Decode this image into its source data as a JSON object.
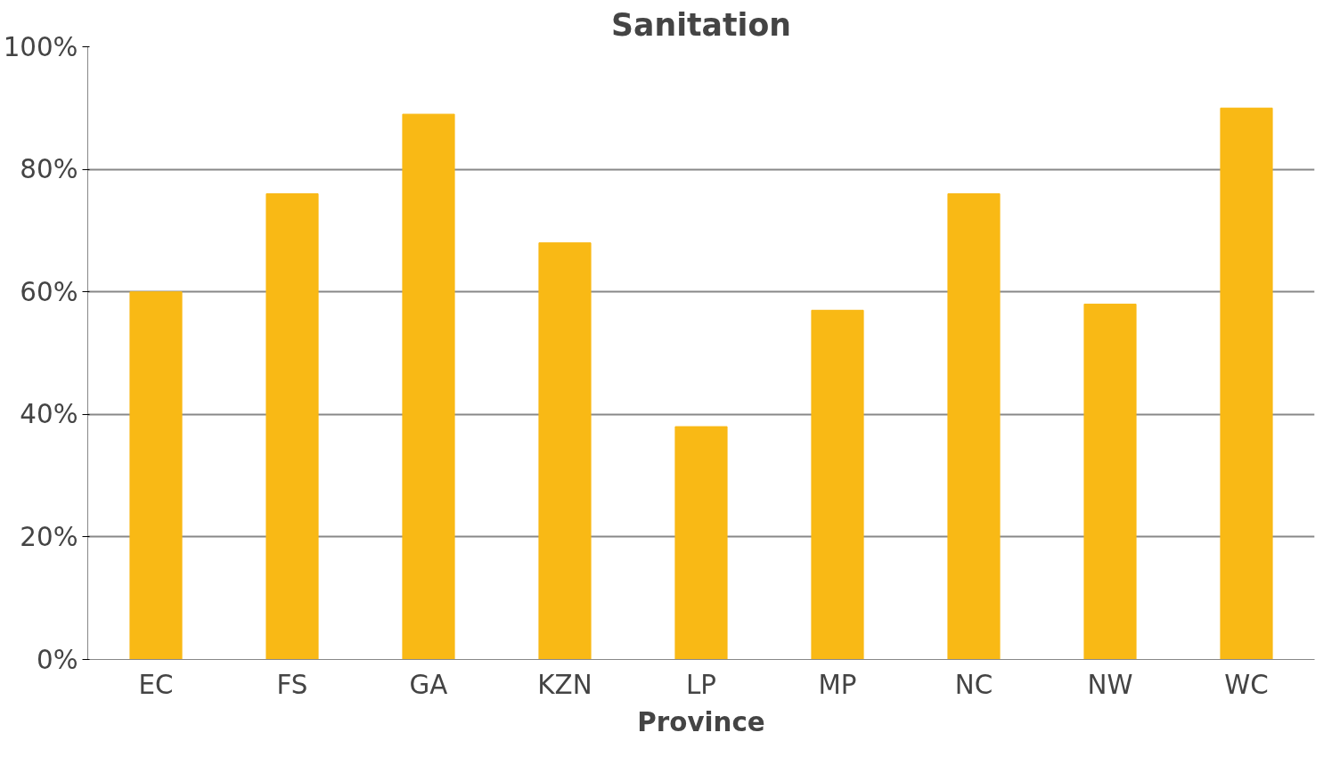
{
  "chart_data": {
    "type": "bar",
    "title": "Sanitation",
    "xlabel": "Province",
    "categories": [
      "EC",
      "FS",
      "GA",
      "KZN",
      "LP",
      "MP",
      "NC",
      "NW",
      "WC"
    ],
    "values": [
      60,
      76,
      89,
      68,
      38,
      57,
      76,
      58,
      90
    ],
    "color": "#f9b915",
    "ylim": [
      0,
      100
    ],
    "yticks": [
      {
        "value": 0,
        "label": "0%"
      },
      {
        "value": 20,
        "label": "20%"
      },
      {
        "value": 40,
        "label": "40%"
      },
      {
        "value": 60,
        "label": "60%"
      },
      {
        "value": 80,
        "label": "80%"
      },
      {
        "value": 100,
        "label": "100%"
      }
    ],
    "grid": "y"
  }
}
